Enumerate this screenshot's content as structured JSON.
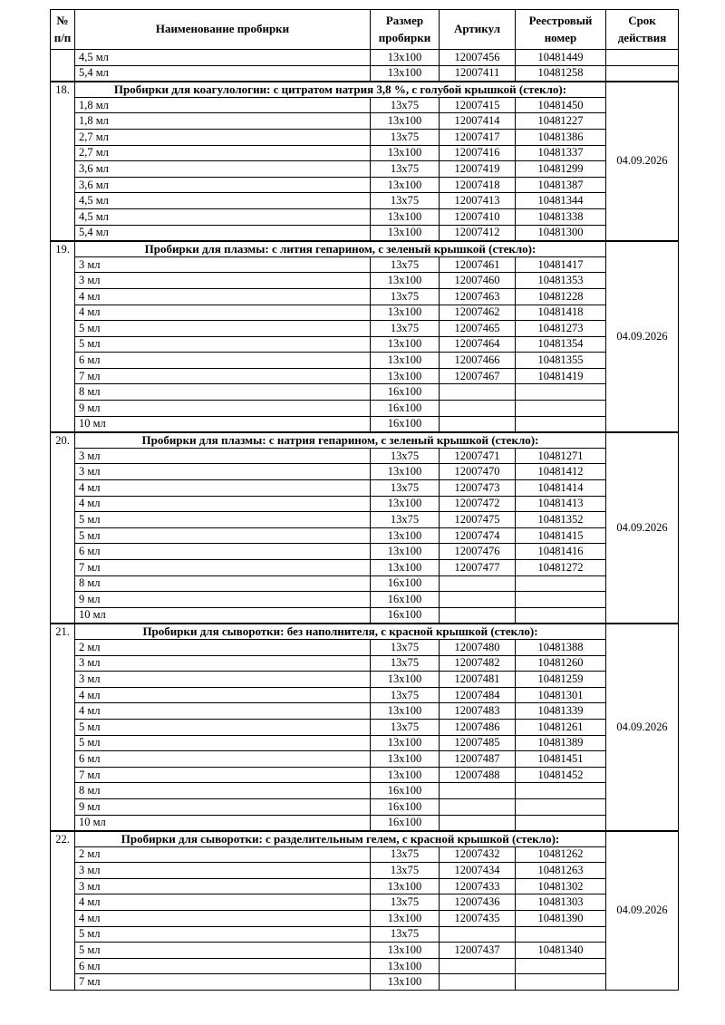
{
  "table": {
    "columns": [
      {
        "label": "№ п/п"
      },
      {
        "label": "Наименование пробирки"
      },
      {
        "label": "Размер пробирки"
      },
      {
        "label": "Артикул"
      },
      {
        "label": "Реестровый номер"
      },
      {
        "label": "Срок действия"
      }
    ],
    "leading_rows": [
      {
        "volume": "4,5 мл",
        "size": "13x100",
        "article": "12007456",
        "registry": "10481449",
        "validity": ""
      },
      {
        "volume": "5,4 мл",
        "size": "13x100",
        "article": "12007411",
        "registry": "10481258",
        "validity": ""
      }
    ],
    "sections": [
      {
        "number": "18.",
        "title": "Пробирки для коагулологии: с цитратом натрия 3,8 %, с голубой крышкой (стекло):",
        "validity": "04.09.2026",
        "rows": [
          {
            "volume": "1,8 мл",
            "size": "13x75",
            "article": "12007415",
            "registry": "10481450"
          },
          {
            "volume": "1,8 мл",
            "size": "13x100",
            "article": "12007414",
            "registry": "10481227"
          },
          {
            "volume": "2,7 мл",
            "size": "13x75",
            "article": "12007417",
            "registry": "10481386"
          },
          {
            "volume": "2,7 мл",
            "size": "13x100",
            "article": "12007416",
            "registry": "10481337"
          },
          {
            "volume": "3,6 мл",
            "size": "13x75",
            "article": "12007419",
            "registry": "10481299"
          },
          {
            "volume": "3,6 мл",
            "size": "13x100",
            "article": "12007418",
            "registry": "10481387"
          },
          {
            "volume": "4,5 мл",
            "size": "13x75",
            "article": "12007413",
            "registry": "10481344"
          },
          {
            "volume": "4,5 мл",
            "size": "13x100",
            "article": "12007410",
            "registry": "10481338"
          },
          {
            "volume": "5,4 мл",
            "size": "13x100",
            "article": "12007412",
            "registry": "10481300"
          }
        ]
      },
      {
        "number": "19.",
        "title": "Пробирки для плазмы: с лития гепарином, с зеленый крышкой (стекло):",
        "validity": "04.09.2026",
        "rows": [
          {
            "volume": "3 мл",
            "size": "13x75",
            "article": "12007461",
            "registry": "10481417"
          },
          {
            "volume": "3 мл",
            "size": "13x100",
            "article": "12007460",
            "registry": "10481353"
          },
          {
            "volume": "4 мл",
            "size": "13x75",
            "article": "12007463",
            "registry": "10481228"
          },
          {
            "volume": "4 мл",
            "size": "13x100",
            "article": "12007462",
            "registry": "10481418"
          },
          {
            "volume": "5 мл",
            "size": "13x75",
            "article": "12007465",
            "registry": "10481273"
          },
          {
            "volume": "5 мл",
            "size": "13x100",
            "article": "12007464",
            "registry": "10481354"
          },
          {
            "volume": "6 мл",
            "size": "13x100",
            "article": "12007466",
            "registry": "10481355"
          },
          {
            "volume": "7 мл",
            "size": "13x100",
            "article": "12007467",
            "registry": "10481419"
          },
          {
            "volume": "8 мл",
            "size": "16x100",
            "article": "",
            "registry": ""
          },
          {
            "volume": "9 мл",
            "size": "16x100",
            "article": "",
            "registry": ""
          },
          {
            "volume": "10 мл",
            "size": "16x100",
            "article": "",
            "registry": ""
          }
        ]
      },
      {
        "number": "20.",
        "title": "Пробирки для плазмы: с натрия гепарином, с зеленый крышкой (стекло):",
        "validity": "04.09.2026",
        "rows": [
          {
            "volume": "3 мл",
            "size": "13x75",
            "article": "12007471",
            "registry": "10481271"
          },
          {
            "volume": "3 мл",
            "size": "13x100",
            "article": "12007470",
            "registry": "10481412"
          },
          {
            "volume": "4 мл",
            "size": "13x75",
            "article": "12007473",
            "registry": "10481414"
          },
          {
            "volume": "4 мл",
            "size": "13x100",
            "article": "12007472",
            "registry": "10481413"
          },
          {
            "volume": "5 мл",
            "size": "13x75",
            "article": "12007475",
            "registry": "10481352"
          },
          {
            "volume": "5 мл",
            "size": "13x100",
            "article": "12007474",
            "registry": "10481415"
          },
          {
            "volume": "6 мл",
            "size": "13x100",
            "article": "12007476",
            "registry": "10481416"
          },
          {
            "volume": "7 мл",
            "size": "13x100",
            "article": "12007477",
            "registry": "10481272"
          },
          {
            "volume": "8 мл",
            "size": "16x100",
            "article": "",
            "registry": ""
          },
          {
            "volume": "9 мл",
            "size": "16x100",
            "article": "",
            "registry": ""
          },
          {
            "volume": "10 мл",
            "size": "16x100",
            "article": "",
            "registry": ""
          }
        ]
      },
      {
        "number": "21.",
        "title": "Пробирки для сыворотки: без наполнителя, с красной крышкой (стекло):",
        "validity": "04.09.2026",
        "rows": [
          {
            "volume": "2 мл",
            "size": "13x75",
            "article": "12007480",
            "registry": "10481388"
          },
          {
            "volume": "3 мл",
            "size": "13x75",
            "article": "12007482",
            "registry": "10481260"
          },
          {
            "volume": "3 мл",
            "size": "13x100",
            "article": "12007481",
            "registry": "10481259"
          },
          {
            "volume": "4 мл",
            "size": "13x75",
            "article": "12007484",
            "registry": "10481301"
          },
          {
            "volume": "4 мл",
            "size": "13x100",
            "article": "12007483",
            "registry": "10481339"
          },
          {
            "volume": "5 мл",
            "size": "13x75",
            "article": "12007486",
            "registry": "10481261"
          },
          {
            "volume": "5 мл",
            "size": "13x100",
            "article": "12007485",
            "registry": "10481389"
          },
          {
            "volume": "6 мл",
            "size": "13x100",
            "article": "12007487",
            "registry": "10481451"
          },
          {
            "volume": "7 мл",
            "size": "13x100",
            "article": "12007488",
            "registry": "10481452"
          },
          {
            "volume": "8 мл",
            "size": "16x100",
            "article": "",
            "registry": ""
          },
          {
            "volume": "9 мл",
            "size": "16x100",
            "article": "",
            "registry": ""
          },
          {
            "volume": "10 мл",
            "size": "16x100",
            "article": "",
            "registry": ""
          }
        ]
      },
      {
        "number": "22.",
        "title": "Пробирки для сыворотки: с разделительным гелем, с красной крышкой (стекло):",
        "validity": "04.09.2026",
        "rows": [
          {
            "volume": "2 мл",
            "size": "13x75",
            "article": "12007432",
            "registry": "10481262"
          },
          {
            "volume": "3 мл",
            "size": "13x75",
            "article": "12007434",
            "registry": "10481263"
          },
          {
            "volume": "3 мл",
            "size": "13x100",
            "article": "12007433",
            "registry": "10481302"
          },
          {
            "volume": "4 мл",
            "size": "13x75",
            "article": "12007436",
            "registry": "10481303"
          },
          {
            "volume": "4 мл",
            "size": "13x100",
            "article": "12007435",
            "registry": "10481390"
          },
          {
            "volume": "5 мл",
            "size": "13x75",
            "article": "",
            "registry": ""
          },
          {
            "volume": "5 мл",
            "size": "13x100",
            "article": "12007437",
            "registry": "10481340"
          },
          {
            "volume": "6 мл",
            "size": "13x100",
            "article": "",
            "registry": ""
          },
          {
            "volume": "7 мл",
            "size": "13x100",
            "article": "",
            "registry": ""
          }
        ]
      }
    ]
  }
}
